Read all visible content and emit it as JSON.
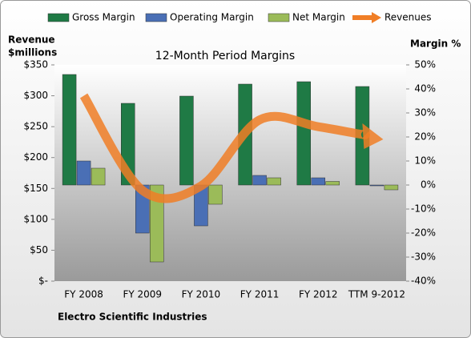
{
  "chart_data": {
    "type": "bar",
    "title": "12-Month Period Margins",
    "ylabel": [
      "Revenue",
      "$millions"
    ],
    "y2label": "Margin %",
    "note": "Electro Scientific Industries",
    "categories": [
      "FY 2008",
      "FY 2009",
      "FY 2010",
      "FY 2011",
      "FY 2012",
      "TTM 9-2012"
    ],
    "series": [
      {
        "name": "Gross Margin",
        "type": "bar",
        "axis": "y2",
        "color": "#1f7a45",
        "values": [
          46,
          34,
          37,
          42,
          43,
          41
        ]
      },
      {
        "name": "Operating Margin",
        "type": "bar",
        "axis": "y2",
        "color": "#4a6fb5",
        "values": [
          10,
          -20,
          -17,
          4,
          3,
          0
        ]
      },
      {
        "name": "Net Margin",
        "type": "bar",
        "axis": "y2",
        "color": "#9bbb59",
        "values": [
          7,
          -32,
          -8,
          3,
          1.5,
          -2
        ]
      },
      {
        "name": "Revenues",
        "type": "line",
        "axis": "y",
        "color": "#f07e26",
        "values": [
          300,
          147,
          154,
          261,
          250,
          232
        ]
      }
    ],
    "ylim": [
      0,
      350
    ],
    "yticks": [
      {
        "value": 0,
        "label": "$-"
      },
      {
        "value": 50,
        "label": "$50"
      },
      {
        "value": 100,
        "label": "$100"
      },
      {
        "value": 150,
        "label": "$150"
      },
      {
        "value": 200,
        "label": "$200"
      },
      {
        "value": 250,
        "label": "$250"
      },
      {
        "value": 300,
        "label": "$300"
      },
      {
        "value": 350,
        "label": "$350"
      }
    ],
    "y2lim": [
      -40,
      50
    ],
    "y2ticks": [
      {
        "value": -40,
        "label": "-40%"
      },
      {
        "value": -30,
        "label": "-30%"
      },
      {
        "value": -20,
        "label": "-20%"
      },
      {
        "value": -10,
        "label": "-10%"
      },
      {
        "value": 0,
        "label": "0%"
      },
      {
        "value": 10,
        "label": "10%"
      },
      {
        "value": 20,
        "label": "20%"
      },
      {
        "value": 30,
        "label": "30%"
      },
      {
        "value": 40,
        "label": "40%"
      },
      {
        "value": 50,
        "label": "50%"
      }
    ]
  }
}
